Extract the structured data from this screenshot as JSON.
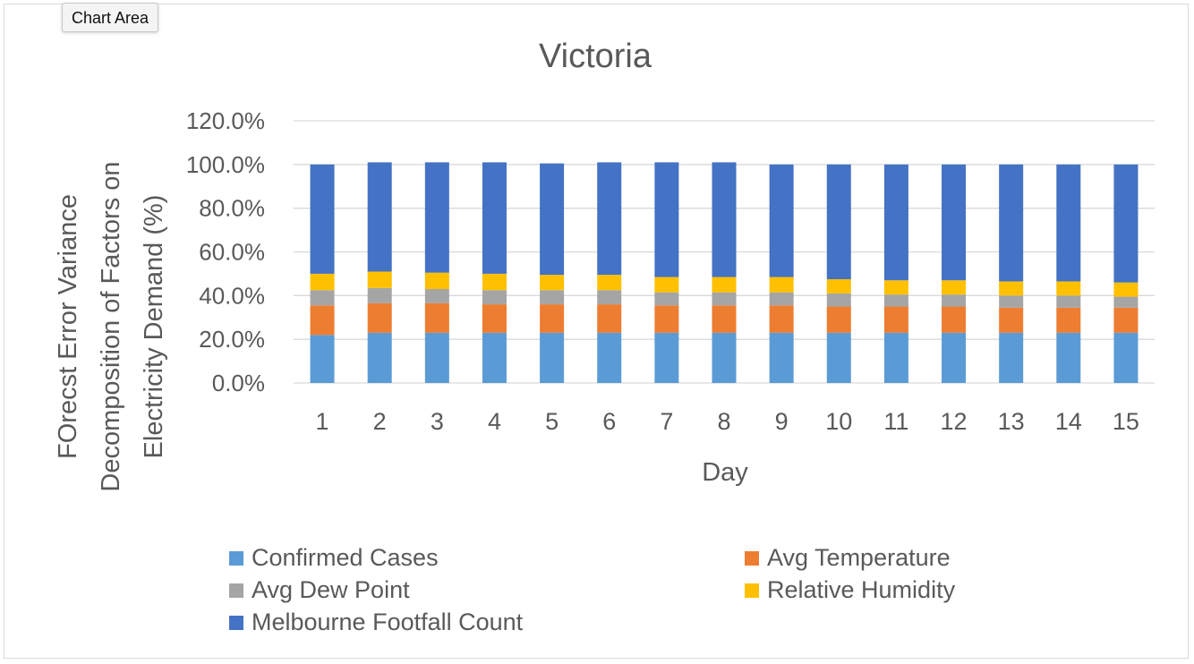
{
  "chart_area_label": "Chart Area",
  "chart_data": {
    "type": "bar",
    "stacked": true,
    "title": "Victoria",
    "xlabel": "Day",
    "ylabel": "FOrecst Error Variance Decomposition of Factors on Electricity Demand (%)",
    "ylabel_lines": [
      "FOrecst Error Variance",
      "Decomposition of Factors on",
      "Electricity Demand (%)"
    ],
    "categories": [
      "1",
      "2",
      "3",
      "4",
      "5",
      "6",
      "7",
      "8",
      "9",
      "10",
      "11",
      "12",
      "13",
      "14",
      "15"
    ],
    "ylim": [
      0,
      120
    ],
    "yticks": [
      "0.0%",
      "20.0%",
      "40.0%",
      "60.0%",
      "80.0%",
      "100.0%",
      "120.0%"
    ],
    "grid": true,
    "legend_position": "bottom",
    "series": [
      {
        "name": "Confirmed Cases",
        "color": "#5B9BD5",
        "values": [
          22.0,
          23.0,
          23.0,
          23.0,
          23.0,
          23.0,
          23.0,
          23.0,
          23.0,
          23.0,
          23.0,
          23.0,
          23.0,
          23.0,
          23.0
        ]
      },
      {
        "name": "Avg Temperature",
        "color": "#ED7D31",
        "values": [
          13.5,
          13.5,
          13.5,
          13.0,
          13.0,
          13.0,
          12.5,
          12.5,
          12.5,
          12.0,
          12.0,
          12.0,
          11.5,
          11.5,
          11.5
        ]
      },
      {
        "name": "Avg Dew Point",
        "color": "#A5A5A5",
        "values": [
          7.0,
          7.0,
          6.5,
          6.5,
          6.5,
          6.5,
          6.0,
          6.0,
          6.0,
          6.0,
          5.5,
          5.5,
          5.5,
          5.5,
          5.0
        ]
      },
      {
        "name": "Relative Humidity",
        "color": "#FFC000",
        "values": [
          7.5,
          7.5,
          7.5,
          7.5,
          7.0,
          7.0,
          7.0,
          7.0,
          7.0,
          6.5,
          6.5,
          6.5,
          6.5,
          6.5,
          6.5
        ]
      },
      {
        "name": "Melbourne Footfall Count",
        "color": "#4472C4",
        "values": [
          50.0,
          50.0,
          50.5,
          51.0,
          51.0,
          51.5,
          52.5,
          52.5,
          51.5,
          52.5,
          53.0,
          53.0,
          53.5,
          53.5,
          54.0
        ]
      }
    ]
  }
}
